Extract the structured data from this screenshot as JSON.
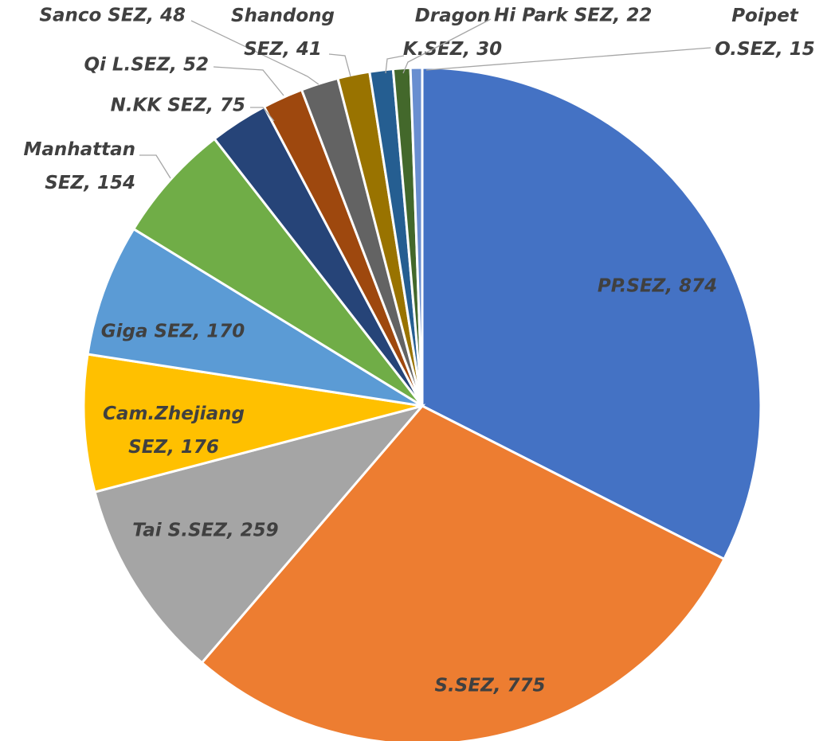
{
  "chart_data": {
    "type": "pie",
    "values": [
      874,
      775,
      259,
      176,
      170,
      154,
      75,
      52,
      48,
      41,
      30,
      22,
      15
    ],
    "value_labels": [
      "PP.SEZ, 874",
      "S.SEZ, 775",
      "Tai S.SEZ, 259",
      "Cam.Zhejiang SEZ, 176",
      "Giga SEZ, 170",
      "Manhattan SEZ, 154",
      "N.KK SEZ, 75",
      "Qi L.SEZ, 52",
      "Sanco SEZ, 48",
      "Shandong SEZ, 41",
      "Dragon K.SEZ, 30",
      "Hi Park SEZ, 22",
      "Poipet O.SEZ, 15"
    ],
    "colors": [
      "#4472c4",
      "#ed7d31",
      "#a5a5a5",
      "#ffc000",
      "#5b9bd5",
      "#70ad47",
      "#264478",
      "#9e480e",
      "#636363",
      "#997300",
      "#255e91",
      "#43682b",
      "#698ed0"
    ]
  }
}
